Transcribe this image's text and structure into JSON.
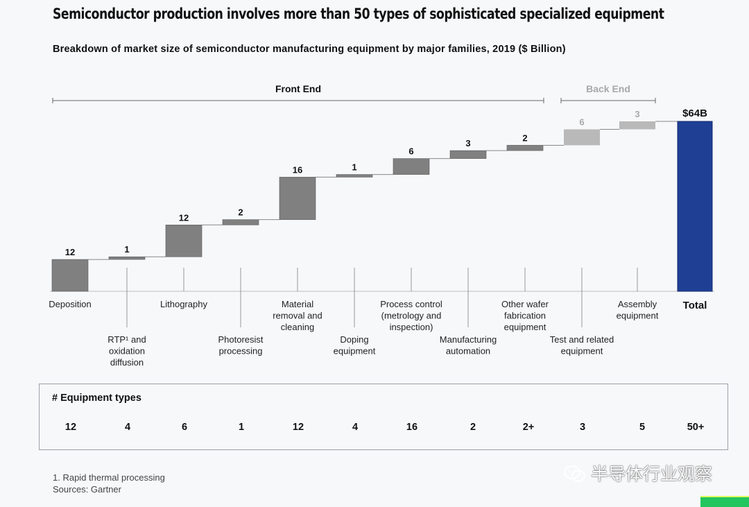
{
  "title": "Semiconductor production involves more than 50 types of sophisticated specialized equipment",
  "subtitle": "Breakdown of market size of semiconductor manufacturing equipment by major families, 2019 ($ Billion)",
  "sections": {
    "front_end": "Front End",
    "back_end": "Back End"
  },
  "chart_data": {
    "type": "waterfall",
    "unit": "$ Billion",
    "categories": [
      "Deposition",
      "RTP¹ and oxidation diffusion",
      "Lithography",
      "Photoresist processing",
      "Material removal and cleaning",
      "Doping equipment",
      "Process control (metrology and inspection)",
      "Manufacturing automation",
      "Other wafer fabrication equipment",
      "Test and related equipment",
      "Assembly equipment"
    ],
    "category_lines": [
      [
        "Deposition"
      ],
      [
        "RTP¹ and",
        "oxidation",
        "diffusion"
      ],
      [
        "Lithography"
      ],
      [
        "Photoresist",
        "processing"
      ],
      [
        "Material",
        "removal and",
        "cleaning"
      ],
      [
        "Doping",
        "equipment"
      ],
      [
        "Process control",
        "(metrology and",
        "inspection)"
      ],
      [
        "Manufacturing",
        "automation"
      ],
      [
        "Other wafer",
        "fabrication",
        "equipment"
      ],
      [
        "Test and related",
        "equipment"
      ],
      [
        "Assembly",
        "equipment"
      ]
    ],
    "values": [
      12,
      1,
      12,
      2,
      16,
      1,
      6,
      3,
      2,
      6,
      3
    ],
    "value_labels": [
      "12",
      "1",
      "12",
      "2",
      "16",
      "1",
      "6",
      "3",
      "2",
      "6",
      "3"
    ],
    "segment": [
      "front",
      "front",
      "front",
      "front",
      "front",
      "front",
      "front",
      "front",
      "front",
      "back",
      "back"
    ],
    "total_label": "Total",
    "total_value": 64,
    "total_value_label": "$64B",
    "ylim": [
      0,
      64
    ],
    "colors": {
      "front": "#808080",
      "back": "#b9b9b9",
      "total": "#1f3f94",
      "back_text": "#a8a8a8"
    }
  },
  "equipment_types": {
    "title": "# Equipment types",
    "counts": [
      "12",
      "4",
      "6",
      "1",
      "12",
      "4",
      "16",
      "2",
      "2+",
      "3",
      "5",
      "50+"
    ]
  },
  "footnotes": [
    "1. Rapid thermal processing",
    "Sources: Gartner"
  ],
  "watermark": "半导体行业观察"
}
